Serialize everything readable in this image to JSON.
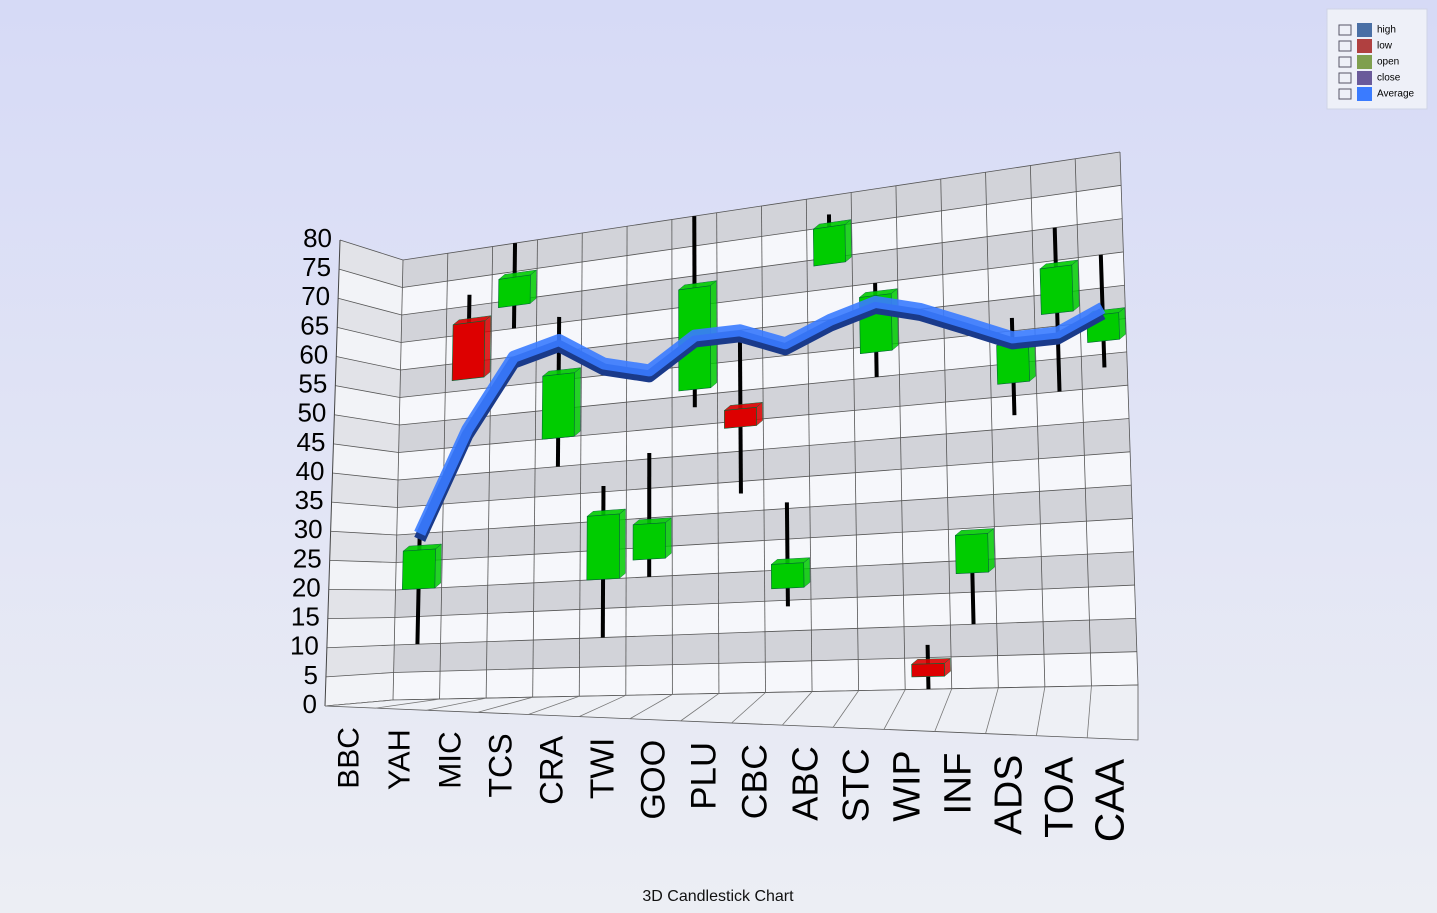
{
  "chart_data": {
    "type": "candlestick",
    "title": "3D Candlestick Chart",
    "categories": [
      "BBC",
      "YAH",
      "MIC",
      "TCS",
      "CRA",
      "TWI",
      "GOO",
      "PLU",
      "CBC",
      "ABC",
      "STC",
      "WIP",
      "INF",
      "ADS",
      "TOA",
      "CAA"
    ],
    "series": [
      {
        "name": "high",
        "color": "#4a6fa5",
        "values": [
          30,
          72,
          80,
          66,
          36,
          41,
          80,
          58,
          31,
          77,
          65,
          7,
          24,
          57,
          70,
          65
        ]
      },
      {
        "name": "low",
        "color": "#b04040",
        "values": [
          10,
          57,
          65,
          40,
          10,
          20,
          48,
          33,
          14,
          69,
          50,
          0,
          10,
          42,
          45,
          48
        ]
      },
      {
        "name": "open",
        "color": "#7f9f4f",
        "values": [
          20,
          67,
          69,
          45,
          20,
          23,
          51,
          47,
          17,
          69,
          54,
          4,
          18,
          47,
          57,
          52
        ]
      },
      {
        "name": "close",
        "color": "#6a5a9a",
        "values": [
          27,
          57,
          74,
          56,
          31,
          29,
          68,
          44,
          21,
          75,
          63,
          2,
          24,
          53,
          64,
          56
        ]
      },
      {
        "name": "Average",
        "color": "#3a7bff",
        "values": [
          30,
          48,
          60,
          62,
          57,
          55,
          60,
          60,
          57,
          60,
          62,
          60,
          57,
          54,
          54,
          57
        ]
      }
    ],
    "up_color": "#00cc00",
    "down_color": "#dd0000",
    "ylim": [
      0,
      80
    ],
    "yticks": [
      0,
      5,
      10,
      15,
      20,
      25,
      30,
      35,
      40,
      45,
      50,
      55,
      60,
      65,
      70,
      75,
      80
    ],
    "grid": true,
    "legend": "top-right"
  }
}
